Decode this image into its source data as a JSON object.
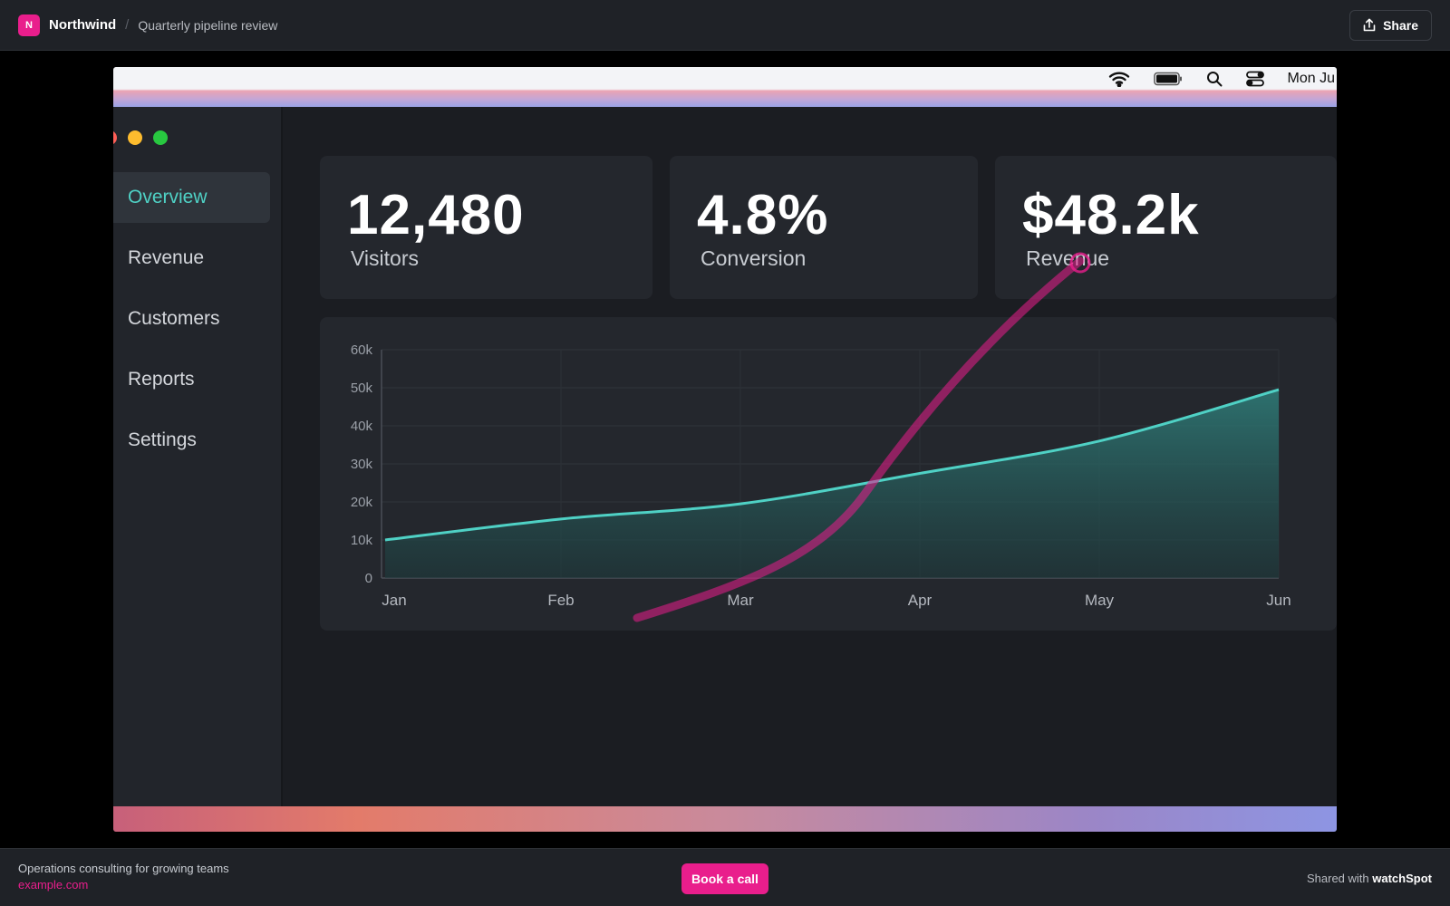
{
  "header": {
    "logo_letter": "N",
    "brand": "Northwind",
    "separator": "/",
    "title": "Quarterly pipeline review",
    "share_label": "Share",
    "share_icon": "share-icon"
  },
  "recording": {
    "menubar": {
      "icons": [
        "wifi-icon",
        "battery-icon",
        "search-icon",
        "control-center-icon"
      ],
      "clock": "Mon Ju"
    },
    "sidebar": {
      "items": [
        {
          "label": "Overview",
          "active": true
        },
        {
          "label": "Revenue",
          "active": false
        },
        {
          "label": "Customers",
          "active": false
        },
        {
          "label": "Reports",
          "active": false
        },
        {
          "label": "Settings",
          "active": false
        }
      ]
    },
    "stats": [
      {
        "value": "12,480",
        "label": "Visitors"
      },
      {
        "value": "4.8%",
        "label": "Conversion"
      },
      {
        "value": "$48.2k",
        "label": "Revenue"
      }
    ],
    "colors": {
      "accent": "#4fd1c5",
      "annotation": "#e91e8c"
    }
  },
  "chart_data": {
    "type": "area",
    "x": [
      "Jan",
      "Feb",
      "Mar",
      "Apr",
      "May",
      "Jun"
    ],
    "y_ticks": [
      "0",
      "10k",
      "20k",
      "30k",
      "40k",
      "50k",
      "60k"
    ],
    "ylim": [
      0,
      60000
    ],
    "series": [
      {
        "values": [
          10000,
          15500,
          19500,
          27500,
          36000,
          49500
        ]
      }
    ],
    "grid": true
  },
  "footer": {
    "tagline": "Operations consulting for growing teams",
    "link": "example.com",
    "cta_label": "Book a call",
    "shared_prefix": "Shared with",
    "shared_brand": "watchSpot"
  }
}
